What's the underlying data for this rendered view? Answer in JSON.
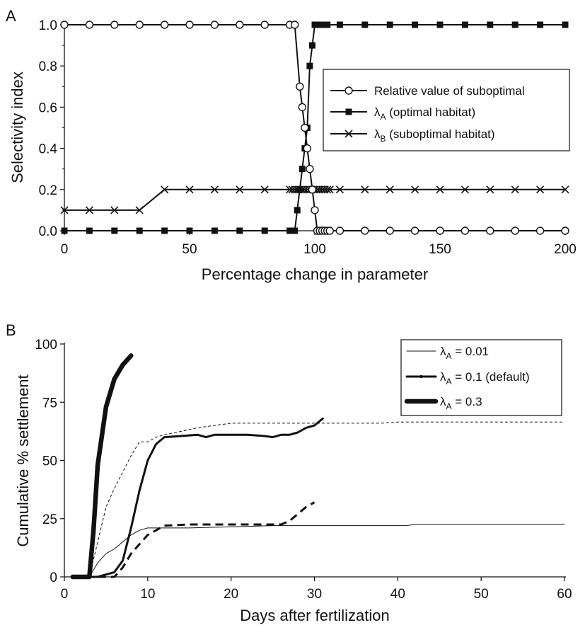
{
  "chart_data": [
    {
      "panel_label": "A",
      "type": "line",
      "xlabel": "Percentage change in parameter",
      "ylabel": "Selectivity index",
      "xlim": [
        0,
        200
      ],
      "ylim": [
        0,
        1
      ],
      "xticks": [
        "0",
        "50",
        "100",
        "150",
        "200"
      ],
      "yticks": [
        "0.0",
        "0.2",
        "0.4",
        "0.6",
        "0.8",
        "1.0"
      ],
      "legend_position": "center-right",
      "series": [
        {
          "name": "Relative value of suboptimal",
          "marker": "open-circle",
          "x": [
            0,
            10,
            20,
            30,
            40,
            50,
            60,
            70,
            80,
            90,
            92,
            94,
            95,
            96,
            97,
            98,
            99,
            100,
            101,
            102,
            103,
            104,
            105,
            106,
            110,
            120,
            130,
            140,
            150,
            160,
            170,
            180,
            190,
            200
          ],
          "y": [
            1,
            1,
            1,
            1,
            1,
            1,
            1,
            1,
            1,
            1,
            1,
            0.7,
            0.6,
            0.5,
            0.4,
            0.3,
            0.2,
            0.1,
            0,
            0,
            0,
            0,
            0,
            0,
            0,
            0,
            0,
            0,
            0,
            0,
            0,
            0,
            0,
            0
          ]
        },
        {
          "name": "λA (optimal habitat)",
          "name_base": "λ",
          "name_sub": "A",
          "name_rest": " (optimal habitat)",
          "marker": "filled-square",
          "x": [
            0,
            10,
            20,
            30,
            40,
            50,
            60,
            70,
            80,
            90,
            92,
            93,
            94,
            95,
            96,
            97,
            98,
            99,
            100,
            101,
            102,
            103,
            104,
            105,
            110,
            120,
            130,
            140,
            150,
            160,
            170,
            180,
            190,
            200
          ],
          "y": [
            0,
            0,
            0,
            0,
            0,
            0,
            0,
            0,
            0,
            0,
            0,
            0.1,
            0.2,
            0.3,
            0.4,
            0.5,
            0.8,
            0.9,
            1,
            1,
            1,
            1,
            1,
            1,
            1,
            1,
            1,
            1,
            1,
            1,
            1,
            1,
            1,
            1
          ]
        },
        {
          "name": "λB (suboptimal habitat)",
          "name_base": "λ",
          "name_sub": "B",
          "name_rest": " (suboptimal habitat)",
          "marker": "cross",
          "x": [
            0,
            10,
            20,
            30,
            40,
            50,
            60,
            70,
            80,
            90,
            91,
            92,
            93,
            94,
            95,
            96,
            97,
            98,
            99,
            100,
            101,
            102,
            103,
            104,
            105,
            106,
            110,
            120,
            130,
            140,
            150,
            160,
            170,
            180,
            190,
            200
          ],
          "y": [
            0.1,
            0.1,
            0.1,
            0.1,
            0.2,
            0.2,
            0.2,
            0.2,
            0.2,
            0.2,
            0.2,
            0.2,
            0.2,
            0.2,
            0.2,
            0.2,
            0.2,
            0.2,
            0.2,
            0.2,
            0.2,
            0.2,
            0.2,
            0.2,
            0.2,
            0.2,
            0.2,
            0.2,
            0.2,
            0.2,
            0.2,
            0.2,
            0.2,
            0.2,
            0.2,
            0.2
          ]
        }
      ]
    },
    {
      "panel_label": "B",
      "type": "line",
      "xlabel": "Days after fertilization",
      "ylabel": "Cumulative % settlement",
      "xlim": [
        0,
        60
      ],
      "ylim": [
        0,
        100
      ],
      "xticks": [
        "0",
        "10",
        "20",
        "30",
        "40",
        "50",
        "60"
      ],
      "yticks": [
        "0",
        "25",
        "50",
        "75",
        "100"
      ],
      "legend_position": "top-right",
      "legend": [
        {
          "label_base": "λ",
          "label_sub": "A",
          "label_rest": " = 0.01",
          "weight": "thin"
        },
        {
          "label_base": "λ",
          "label_sub": "A",
          "label_rest": " = 0.1 (default)",
          "weight": "medium"
        },
        {
          "label_base": "λ",
          "label_sub": "A",
          "label_rest": " = 0.3",
          "weight": "thick"
        }
      ],
      "series": [
        {
          "weight": "thin",
          "style": "solid",
          "x": [
            1,
            2,
            3,
            4,
            5,
            6,
            7,
            8,
            9,
            10,
            12,
            15,
            20,
            25,
            30,
            35,
            41,
            42,
            50,
            60
          ],
          "y": [
            0,
            0,
            0,
            6,
            10,
            12,
            15,
            18,
            20,
            21,
            21,
            21,
            21.5,
            22,
            22,
            22,
            22,
            22.5,
            22.5,
            22.5
          ]
        },
        {
          "weight": "thin",
          "style": "dashed",
          "x": [
            1,
            2,
            3,
            4,
            5,
            6,
            7,
            8,
            9,
            10,
            11,
            12,
            14,
            16,
            18,
            20,
            25,
            30,
            38,
            40,
            50,
            60
          ],
          "y": [
            0,
            0,
            0,
            15,
            30,
            38,
            45,
            52,
            58,
            58,
            60,
            61,
            62.5,
            64,
            65,
            66,
            66,
            66,
            66,
            66.5,
            66.5,
            66.5
          ]
        },
        {
          "weight": "medium",
          "style": "solid",
          "x": [
            1,
            2,
            3,
            4,
            5,
            6,
            7,
            8,
            9,
            10,
            11,
            12,
            14,
            16,
            17,
            18,
            20,
            22,
            24,
            25,
            26,
            27,
            28,
            29,
            30,
            31
          ],
          "y": [
            0,
            0,
            0,
            0,
            1,
            2,
            7,
            21,
            37,
            50,
            57,
            60,
            60.5,
            61,
            60,
            61,
            61,
            61,
            60.5,
            60,
            61,
            61,
            62,
            64,
            65,
            68
          ]
        },
        {
          "weight": "medium",
          "style": "dashed",
          "x": [
            1,
            2,
            3,
            4,
            5,
            6,
            7,
            8,
            9,
            10,
            11,
            12,
            15,
            20,
            25,
            26,
            27,
            28,
            29,
            30
          ],
          "y": [
            0,
            0,
            0,
            0,
            0,
            0,
            4,
            10,
            14,
            18,
            20,
            22,
            22.5,
            22.5,
            22.5,
            22.5,
            24,
            27,
            30,
            32
          ]
        },
        {
          "weight": "thick",
          "style": "solid",
          "x": [
            1,
            2,
            3,
            3.5,
            4,
            5,
            6,
            7,
            8
          ],
          "y": [
            0,
            0,
            0,
            20,
            48,
            73,
            85,
            91,
            95
          ]
        }
      ]
    }
  ]
}
